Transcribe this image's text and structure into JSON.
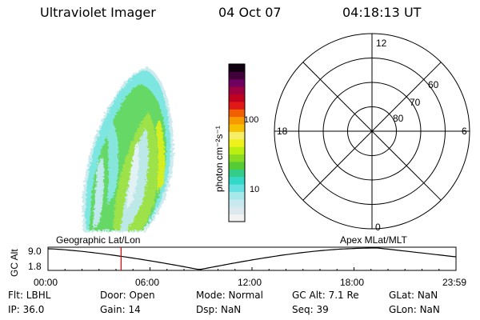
{
  "header": {
    "title": "Ultraviolet Imager",
    "date": "04 Oct 07",
    "time": "04:18:13 UT"
  },
  "colorbar": {
    "label": "photon cm⁻²s⁻¹",
    "ticks": [
      "100",
      "10"
    ],
    "colors": [
      "#f2f2f2",
      "#dde7ee",
      "#c6eaf0",
      "#a6e9ea",
      "#66e0e0",
      "#33d8c8",
      "#33cc88",
      "#55cc33",
      "#88dd22",
      "#bbee11",
      "#eef21a",
      "#f6ee66",
      "#f7c000",
      "#f69a00",
      "#f06000",
      "#e01818",
      "#c00020",
      "#a00040",
      "#700060",
      "#40003a",
      "#100010"
    ]
  },
  "polar": {
    "mlt_labels": [
      "12",
      "18",
      "6",
      "0"
    ],
    "lat_labels": [
      "60",
      "70",
      "80"
    ]
  },
  "altitude_strip": {
    "ylabel": "GC Alt",
    "ymax_label": "9.0",
    "ymin_label": "1.8",
    "left_title": "Geographic Lat/Lon",
    "right_title": "Apex  MLat/MLT",
    "time_ticks": [
      "00:00",
      "06:00",
      "12:00",
      "18:00",
      "23:59"
    ],
    "current_hour": 4.3
  },
  "info": {
    "flt": "Flt: LBHL",
    "ip": "IP: 36.0",
    "door": "Door: Open",
    "gain": "Gain: 14",
    "mode": "Mode: Normal",
    "dsp": "Dsp:      NaN",
    "gcalt": "GC Alt: 7.1 Re",
    "seq": "Seq: 39",
    "glat": "GLat:      NaN",
    "glon": "GLon:      NaN"
  }
}
